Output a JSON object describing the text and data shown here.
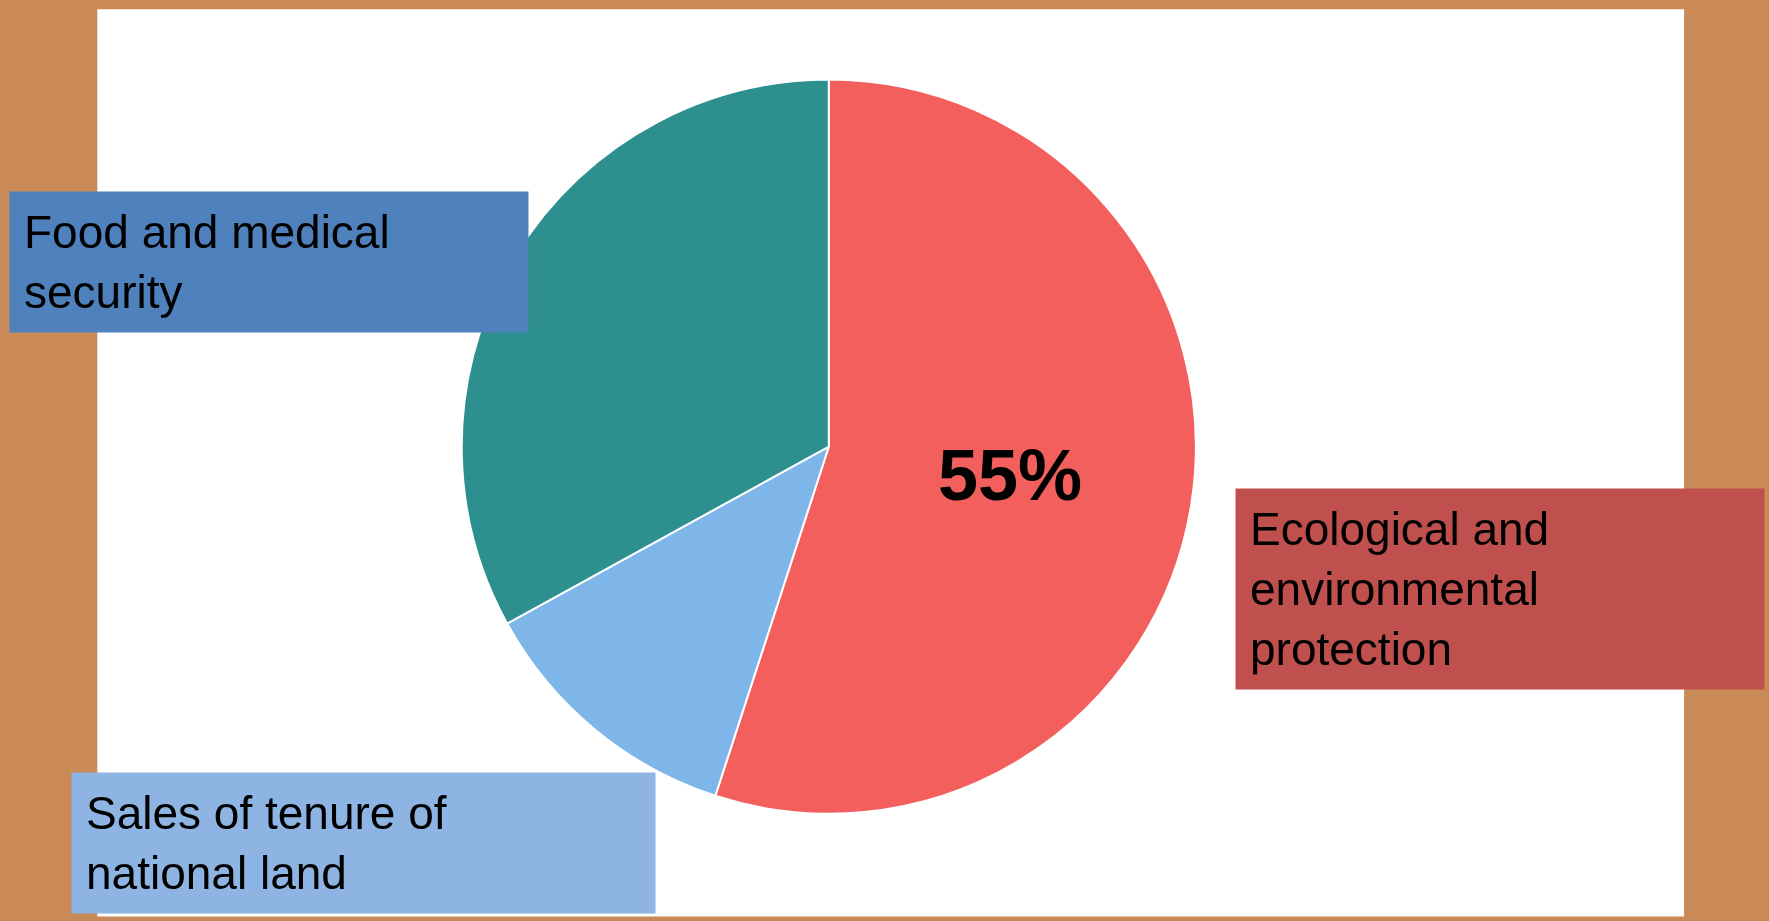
{
  "chart_data": {
    "type": "pie",
    "categories": [
      "Ecological and environmental protection",
      "Sales of tenure of national land",
      "Food and medical security"
    ],
    "values": [
      55,
      12,
      33
    ],
    "colors": [
      "#f25f5c",
      "#7eb6ea",
      "#2e8f8f"
    ],
    "value_labels": [
      "55%",
      null,
      null
    ]
  }
}
